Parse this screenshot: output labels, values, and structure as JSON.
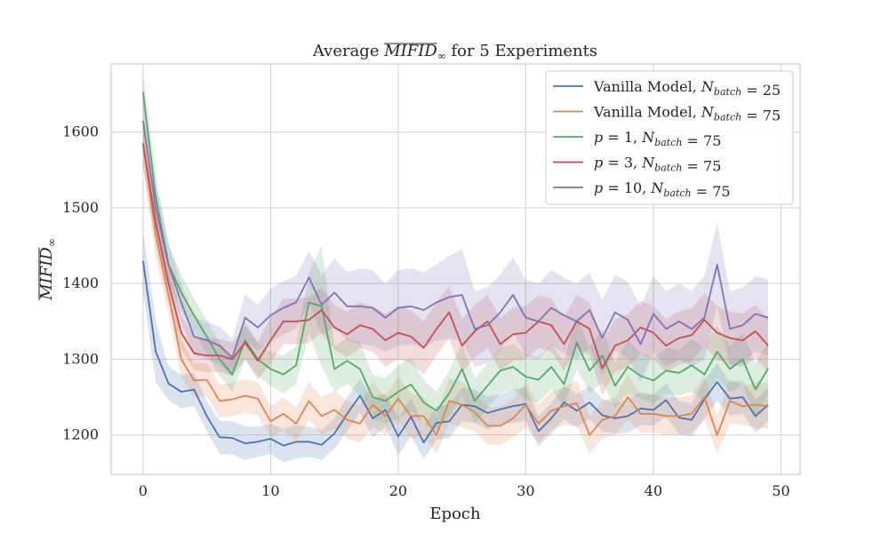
{
  "chart_data": {
    "type": "line",
    "title_prefix": "Average ",
    "title_math": "MIFID",
    "title_sub": "∞",
    "title_suffix": " for 5 Experiments",
    "xlabel": "Epoch",
    "ylabel_math": "MIFID",
    "ylabel_sub": "∞",
    "xlim": [
      -2.5,
      51.5
    ],
    "ylim": [
      1148,
      1690
    ],
    "xticks": [
      0,
      10,
      20,
      30,
      40,
      50
    ],
    "yticks": [
      1200,
      1300,
      1400,
      1500,
      1600
    ],
    "grid": true,
    "legend_position": "top-right",
    "x": [
      0,
      1,
      2,
      3,
      4,
      5,
      6,
      7,
      8,
      9,
      10,
      11,
      12,
      13,
      14,
      15,
      16,
      17,
      18,
      19,
      20,
      21,
      22,
      23,
      24,
      25,
      26,
      27,
      28,
      29,
      30,
      31,
      32,
      33,
      34,
      35,
      36,
      37,
      38,
      39,
      40,
      41,
      42,
      43,
      44,
      45,
      46,
      47,
      48,
      49
    ],
    "series": [
      {
        "legend_prefix": "Vanilla Model, ",
        "legend_var": "N",
        "legend_sub": "batch",
        "legend_eq": " = 25",
        "color": "#4c72b0",
        "values": [
          1430,
          1310,
          1268,
          1257,
          1260,
          1225,
          1197,
          1196,
          1189,
          1191,
          1195,
          1186,
          1191,
          1191,
          1187,
          1202,
          1228,
          1252,
          1222,
          1233,
          1198,
          1224,
          1190,
          1216,
          1218,
          1240,
          1238,
          1229,
          1234,
          1238,
          1241,
          1205,
          1222,
          1243,
          1232,
          1243,
          1226,
          1222,
          1225,
          1235,
          1233,
          1246,
          1223,
          1220,
          1247,
          1270,
          1248,
          1250,
          1225,
          1240
        ],
        "band": [
          40,
          40,
          22,
          22,
          22,
          20,
          22,
          22,
          22,
          20,
          20,
          22,
          22,
          20,
          20,
          20,
          22,
          22,
          25,
          22,
          25,
          25,
          22,
          22,
          22,
          22,
          22,
          22,
          20,
          22,
          22,
          20,
          20,
          22,
          22,
          22,
          22,
          20,
          22,
          22,
          20,
          22,
          22,
          22,
          25,
          25,
          22,
          22,
          22,
          22
        ]
      },
      {
        "legend_prefix": "Vanilla Model, ",
        "legend_var": "N",
        "legend_sub": "batch",
        "legend_eq": " = 75",
        "color": "#dd8452",
        "values": [
          1585,
          1465,
          1385,
          1300,
          1272,
          1273,
          1245,
          1247,
          1252,
          1248,
          1218,
          1228,
          1215,
          1245,
          1225,
          1233,
          1220,
          1215,
          1240,
          1225,
          1248,
          1225,
          1225,
          1200,
          1245,
          1240,
          1230,
          1212,
          1212,
          1222,
          1240,
          1215,
          1232,
          1238,
          1242,
          1200,
          1220,
          1225,
          1250,
          1228,
          1228,
          1225,
          1225,
          1228,
          1250,
          1200,
          1245,
          1238,
          1240,
          1238
        ],
        "band": [
          30,
          30,
          25,
          25,
          22,
          22,
          22,
          22,
          22,
          22,
          20,
          22,
          22,
          25,
          25,
          25,
          25,
          25,
          30,
          25,
          30,
          30,
          25,
          25,
          30,
          30,
          25,
          25,
          25,
          25,
          30,
          25,
          25,
          25,
          30,
          25,
          25,
          25,
          30,
          25,
          25,
          25,
          25,
          25,
          30,
          25,
          30,
          25,
          30,
          30
        ]
      },
      {
        "legend_prefix": "",
        "legend_var": "p",
        "legend_sub": "",
        "legend_eq": " = 1, ",
        "legend_var2": "N",
        "legend_sub2": "batch",
        "legend_eq2": " = 75",
        "color": "#55a868",
        "values": [
          1653,
          1515,
          1425,
          1388,
          1358,
          1330,
          1300,
          1280,
          1325,
          1300,
          1287,
          1280,
          1292,
          1375,
          1370,
          1287,
          1298,
          1287,
          1250,
          1245,
          1257,
          1267,
          1243,
          1232,
          1255,
          1287,
          1245,
          1265,
          1285,
          1290,
          1277,
          1273,
          1290,
          1267,
          1322,
          1285,
          1305,
          1265,
          1290,
          1278,
          1272,
          1285,
          1282,
          1292,
          1280,
          1310,
          1287,
          1300,
          1260,
          1288
        ],
        "band": [
          25,
          30,
          25,
          25,
          22,
          22,
          22,
          22,
          25,
          22,
          22,
          25,
          25,
          40,
          80,
          30,
          30,
          35,
          30,
          30,
          35,
          35,
          30,
          25,
          30,
          35,
          30,
          30,
          30,
          30,
          30,
          30,
          30,
          30,
          35,
          30,
          35,
          30,
          35,
          30,
          30,
          30,
          30,
          35,
          35,
          35,
          30,
          35,
          35,
          35
        ]
      },
      {
        "legend_prefix": "",
        "legend_var": "p",
        "legend_sub": "",
        "legend_eq": " = 3, ",
        "legend_var2": "N",
        "legend_sub2": "batch",
        "legend_eq2": " = 75",
        "color": "#c44e52",
        "values": [
          1585,
          1480,
          1400,
          1335,
          1308,
          1305,
          1305,
          1300,
          1322,
          1298,
          1325,
          1350,
          1350,
          1352,
          1365,
          1342,
          1333,
          1345,
          1340,
          1325,
          1335,
          1330,
          1315,
          1340,
          1362,
          1318,
          1337,
          1350,
          1320,
          1333,
          1335,
          1350,
          1345,
          1320,
          1350,
          1340,
          1288,
          1318,
          1325,
          1342,
          1335,
          1318,
          1328,
          1332,
          1352,
          1335,
          1328,
          1325,
          1337,
          1318
        ],
        "band": [
          30,
          30,
          25,
          22,
          22,
          22,
          22,
          22,
          22,
          25,
          30,
          30,
          30,
          30,
          30,
          30,
          30,
          30,
          30,
          35,
          35,
          35,
          35,
          35,
          35,
          35,
          35,
          35,
          35,
          35,
          35,
          35,
          35,
          35,
          35,
          35,
          35,
          35,
          35,
          35,
          35,
          35,
          35,
          35,
          35,
          35,
          35,
          35,
          35,
          35
        ]
      },
      {
        "legend_prefix": "",
        "legend_var": "p",
        "legend_sub": "",
        "legend_eq": " = 10, ",
        "legend_var2": "N",
        "legend_sub2": "batch",
        "legend_eq2": " = 75",
        "color": "#8172b2",
        "values": [
          1615,
          1500,
          1425,
          1375,
          1330,
          1325,
          1318,
          1302,
          1355,
          1342,
          1358,
          1368,
          1375,
          1408,
          1372,
          1388,
          1370,
          1370,
          1368,
          1355,
          1368,
          1370,
          1365,
          1375,
          1382,
          1385,
          1340,
          1345,
          1362,
          1385,
          1355,
          1350,
          1368,
          1358,
          1350,
          1365,
          1328,
          1362,
          1352,
          1320,
          1360,
          1340,
          1350,
          1340,
          1355,
          1425,
          1340,
          1345,
          1360,
          1355
        ],
        "band": [
          30,
          30,
          30,
          25,
          25,
          25,
          25,
          25,
          30,
          30,
          35,
          35,
          35,
          35,
          40,
          45,
          45,
          50,
          50,
          45,
          50,
          50,
          50,
          50,
          55,
          60,
          50,
          50,
          50,
          50,
          50,
          50,
          50,
          50,
          50,
          50,
          50,
          50,
          50,
          50,
          50,
          50,
          50,
          50,
          55,
          55,
          50,
          50,
          50,
          50
        ]
      }
    ]
  }
}
